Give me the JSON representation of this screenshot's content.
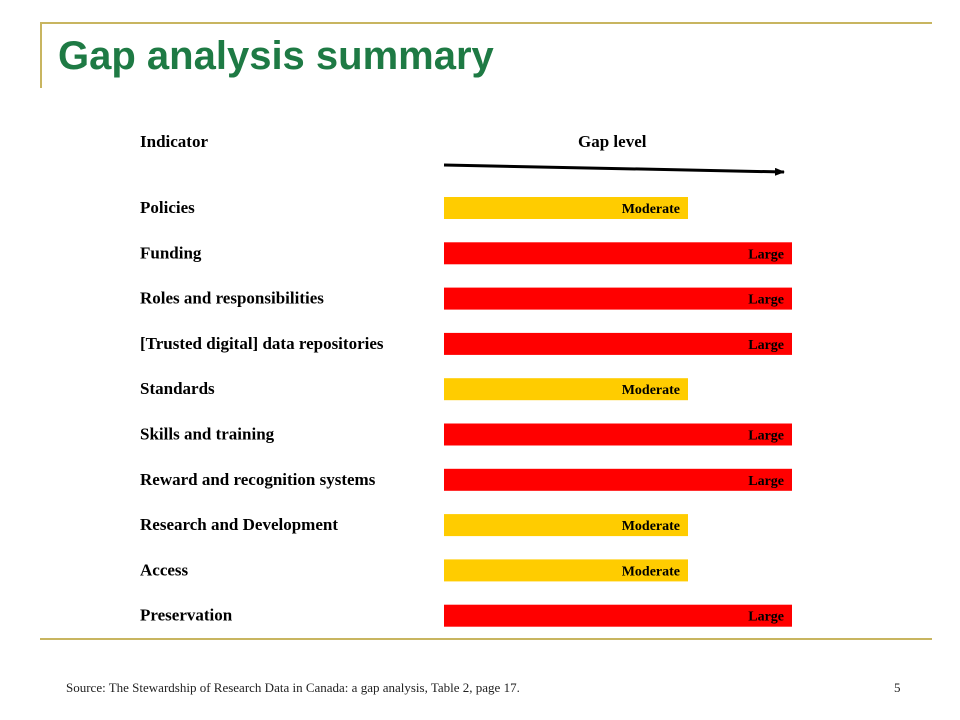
{
  "slide": {
    "title": "Gap analysis summary",
    "source": "Source: The Stewardship of Research Data in Canada: a gap analysis, Table 2, page 17.",
    "page_number": "5"
  },
  "colors": {
    "title": "#1e7a44",
    "frame": "#c8b560",
    "moderate": "#ffcc00",
    "large": "#ff0000"
  },
  "chart_data": {
    "type": "bar",
    "orientation": "horizontal",
    "indicator_header": "Indicator",
    "gap_header": "Gap level",
    "levels": {
      "Moderate": 0.7,
      "Large": 1.0
    },
    "categories": [
      "Policies",
      "Funding",
      "Roles and responsibilities",
      "[Trusted digital] data repositories",
      "Standards",
      "Skills and training",
      "Reward and recognition systems",
      "Research and Development",
      "Access",
      "Preservation"
    ],
    "values": [
      "Moderate",
      "Large",
      "Large",
      "Large",
      "Moderate",
      "Large",
      "Large",
      "Moderate",
      "Moderate",
      "Large"
    ]
  }
}
